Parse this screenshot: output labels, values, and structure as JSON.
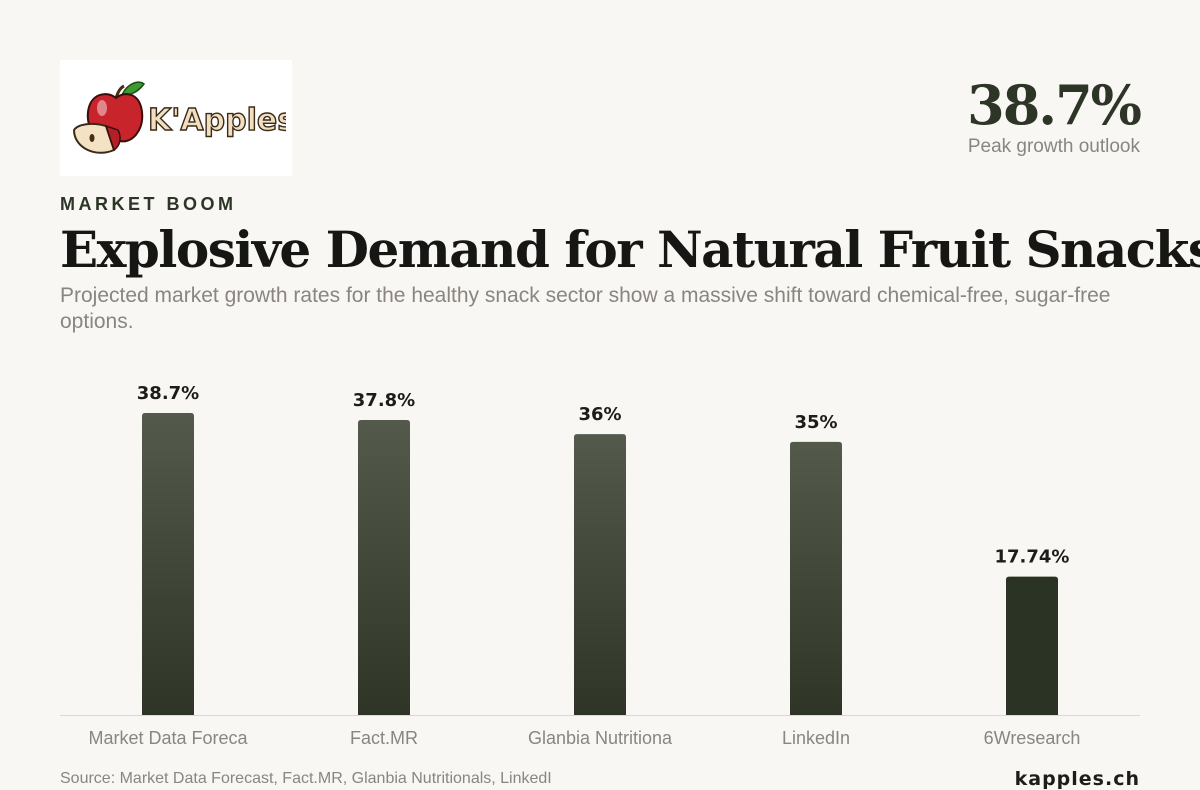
{
  "brand": {
    "logo_text": "K'Apples",
    "website": "kapples.ch"
  },
  "header": {
    "eyebrow": "MARKET BOOM",
    "title": "Explosive Demand for Natural Fruit Snacks",
    "subtitle": "Projected market growth rates for the healthy snack sector show a massive shift toward chemical-free, sugar-free options."
  },
  "highlight": {
    "value": "38.7%",
    "caption": "Peak growth outlook"
  },
  "source": "Source: Market Data Forecast, Fact.MR, Glanbia Nutritionals, LinkedI",
  "colors": {
    "background": "#f8f7f3",
    "bar_top": "#535a4c",
    "bar_bottom": "#2e3526",
    "bar_highlight": "#2b3324",
    "axis": "#dcd9d2",
    "label": "#8a8580",
    "apple_red": "#c8242b",
    "leaf_green": "#3d9a2e"
  },
  "chart_data": {
    "type": "bar",
    "categories": [
      "Market Data Foreca",
      "Fact.MR",
      "Glanbia Nutritiona",
      "LinkedIn",
      "6Wresearch"
    ],
    "values": [
      38.7,
      37.8,
      36,
      35,
      17.74
    ],
    "value_labels": [
      "38.7%",
      "37.8%",
      "36%",
      "35%",
      "17.74%"
    ],
    "ylim": [
      0,
      38.7
    ],
    "grid": false,
    "legend": "none"
  }
}
